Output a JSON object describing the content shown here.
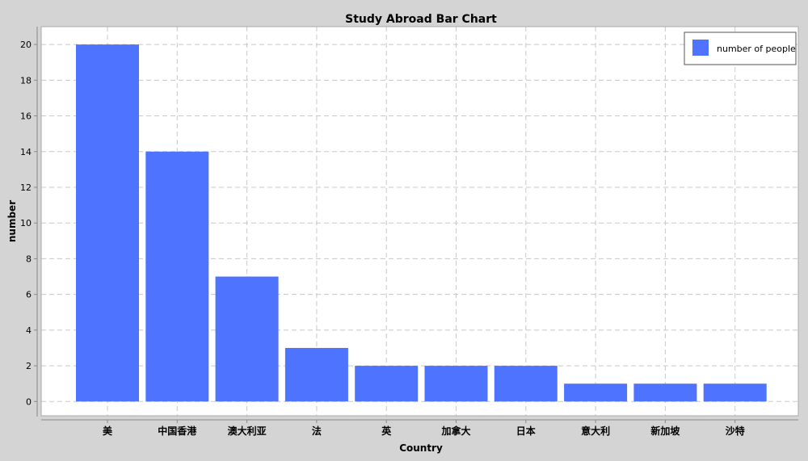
{
  "chart_data": {
    "type": "bar",
    "title": "Study Abroad Bar Chart",
    "xlabel": "Country",
    "ylabel": "number",
    "categories": [
      "美",
      "中国香港",
      "澳大利亚",
      "法",
      "英",
      "加拿大",
      "日本",
      "意大利",
      "新加坡",
      "沙特"
    ],
    "series": [
      {
        "name": "number of people",
        "values": [
          20,
          14,
          7,
          3,
          2,
          2,
          2,
          1,
          1,
          1
        ],
        "color": "#4e73ff"
      }
    ],
    "yticks": [
      0,
      2,
      4,
      6,
      8,
      10,
      12,
      14,
      16,
      18,
      20
    ],
    "ylim": [
      -0.8,
      21
    ],
    "grid": true,
    "legend_position": "top-right",
    "colors": {
      "background": "#d4d4d4",
      "plot_background": "#ffffff",
      "grid": "#c8c8c8",
      "bar": "#4e73ff"
    }
  }
}
